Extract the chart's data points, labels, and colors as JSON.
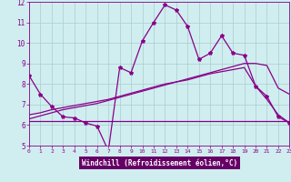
{
  "xlabel": "Windchill (Refroidissement éolien,°C)",
  "xlim": [
    0,
    23
  ],
  "ylim": [
    5,
    12
  ],
  "yticks": [
    5,
    6,
    7,
    8,
    9,
    10,
    11,
    12
  ],
  "xticks": [
    0,
    1,
    2,
    3,
    4,
    5,
    6,
    7,
    8,
    9,
    10,
    11,
    12,
    13,
    14,
    15,
    16,
    17,
    18,
    19,
    20,
    21,
    22,
    23
  ],
  "background_color": "#d0eef0",
  "plot_bg_color": "#d0eef0",
  "line_color": "#880088",
  "grid_color": "#aacccc",
  "xlabel_bg": "#660066",
  "xlabel_fg": "#ffffff",
  "series": [
    {
      "x": [
        0,
        1,
        2,
        3,
        4,
        5,
        6,
        7,
        8,
        9,
        10,
        11,
        12,
        13,
        14,
        15,
        16,
        17,
        18,
        19,
        20,
        21,
        22,
        23
      ],
      "y": [
        8.4,
        7.5,
        6.9,
        6.4,
        6.35,
        6.1,
        5.95,
        4.75,
        8.8,
        8.55,
        10.1,
        11.0,
        11.85,
        11.6,
        10.8,
        9.2,
        9.5,
        10.35,
        9.5,
        9.4,
        7.9,
        7.4,
        6.4,
        6.1
      ],
      "marker": "*",
      "markersize": 3,
      "linewidth": 0.9
    },
    {
      "x": [
        0,
        1,
        2,
        3,
        4,
        5,
        6,
        7,
        8,
        9,
        10,
        11,
        12,
        13,
        14,
        15,
        16,
        17,
        18,
        19,
        20,
        21,
        22,
        23
      ],
      "y": [
        6.2,
        6.2,
        6.2,
        6.2,
        6.2,
        6.2,
        6.2,
        6.2,
        6.2,
        6.2,
        6.2,
        6.2,
        6.2,
        6.2,
        6.2,
        6.2,
        6.2,
        6.2,
        6.2,
        6.2,
        6.2,
        6.2,
        6.2,
        6.2
      ],
      "marker": null,
      "markersize": 0,
      "linewidth": 0.9
    },
    {
      "x": [
        0,
        1,
        2,
        3,
        4,
        5,
        6,
        7,
        8,
        9,
        10,
        11,
        12,
        13,
        14,
        15,
        16,
        17,
        18,
        19,
        20,
        21,
        22,
        23
      ],
      "y": [
        6.5,
        6.6,
        6.75,
        6.85,
        6.95,
        7.05,
        7.15,
        7.25,
        7.4,
        7.55,
        7.7,
        7.85,
        8.0,
        8.1,
        8.25,
        8.4,
        8.55,
        8.7,
        8.85,
        9.0,
        9.0,
        8.9,
        7.8,
        7.5
      ],
      "marker": null,
      "markersize": 0,
      "linewidth": 0.9
    },
    {
      "x": [
        0,
        1,
        2,
        3,
        4,
        5,
        6,
        7,
        8,
        9,
        10,
        11,
        12,
        13,
        14,
        15,
        16,
        17,
        18,
        19,
        20,
        21,
        22,
        23
      ],
      "y": [
        6.3,
        6.45,
        6.6,
        6.75,
        6.85,
        6.95,
        7.05,
        7.2,
        7.35,
        7.5,
        7.65,
        7.8,
        7.95,
        8.1,
        8.2,
        8.35,
        8.5,
        8.6,
        8.7,
        8.8,
        7.9,
        7.25,
        6.5,
        6.1
      ],
      "marker": null,
      "markersize": 0,
      "linewidth": 0.9
    }
  ]
}
